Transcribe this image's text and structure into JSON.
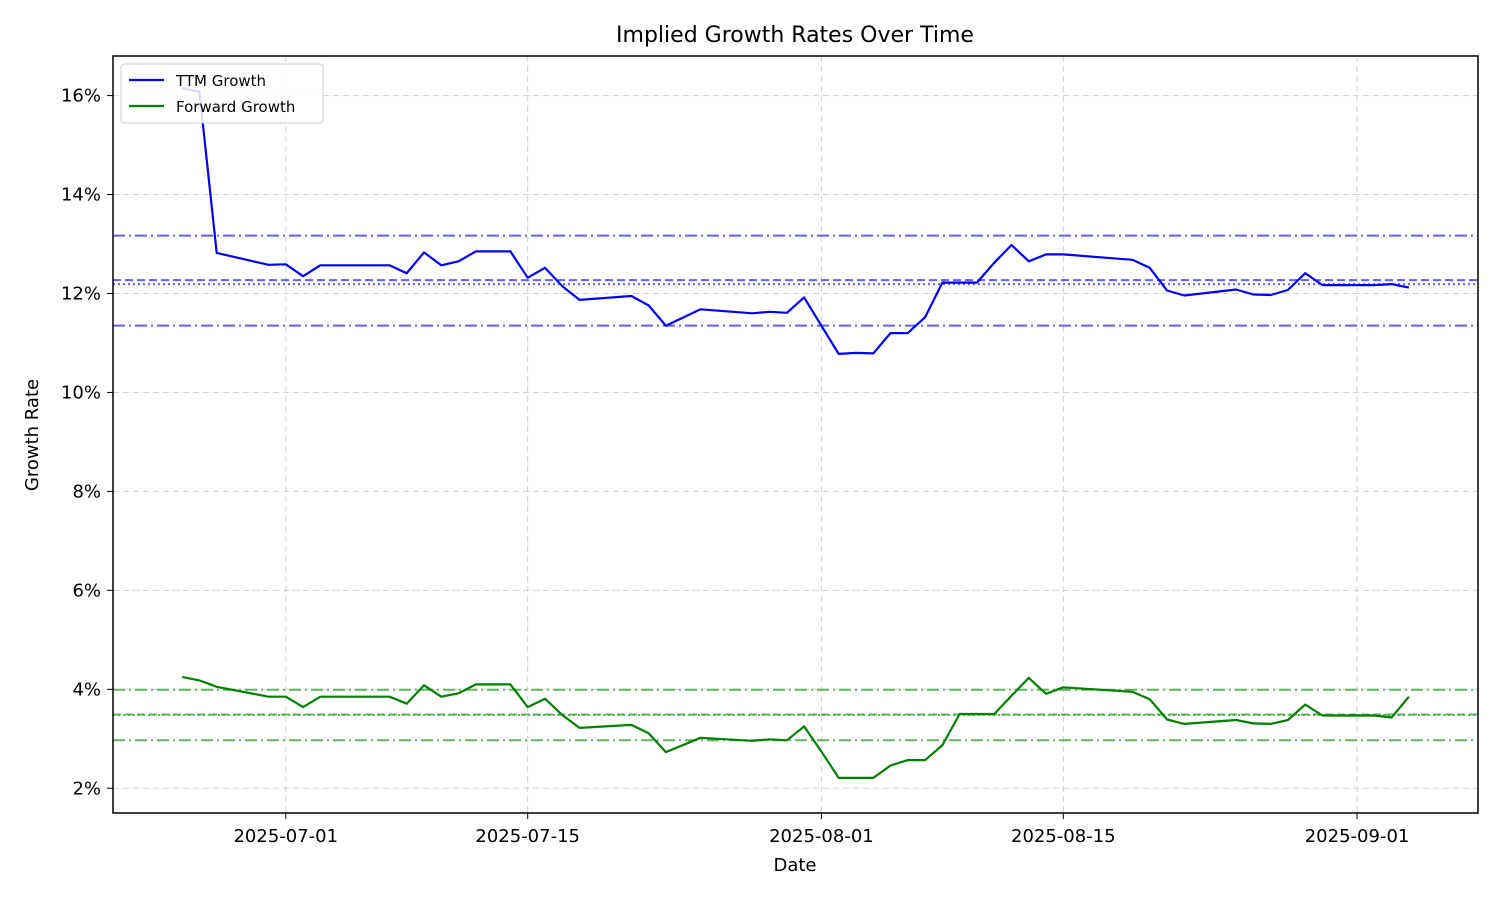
{
  "chart_data": {
    "type": "line",
    "title": "Implied Growth Rates Over Time",
    "xlabel": "Date",
    "ylabel": "Growth Rate",
    "xlim": [
      "2025-06-21",
      "2025-09-08"
    ],
    "ylim": [
      0.015,
      0.168
    ],
    "x_ticks": [
      "2025-07-01",
      "2025-07-15",
      "2025-08-01",
      "2025-08-15",
      "2025-09-01"
    ],
    "y_ticks": [
      0.02,
      0.04,
      0.06,
      0.08,
      0.1,
      0.12,
      0.14,
      0.16
    ],
    "y_tick_labels": [
      "2%",
      "4%",
      "6%",
      "8%",
      "10%",
      "12%",
      "14%",
      "16%"
    ],
    "grid": true,
    "legend_position": "top-left",
    "x": [
      "2025-06-25",
      "2025-06-26",
      "2025-06-27",
      "2025-06-30",
      "2025-07-01",
      "2025-07-02",
      "2025-07-03",
      "2025-07-07",
      "2025-07-08",
      "2025-07-09",
      "2025-07-10",
      "2025-07-11",
      "2025-07-12",
      "2025-07-14",
      "2025-07-15",
      "2025-07-16",
      "2025-07-17",
      "2025-07-18",
      "2025-07-21",
      "2025-07-22",
      "2025-07-23",
      "2025-07-25",
      "2025-07-28",
      "2025-07-29",
      "2025-07-30",
      "2025-07-31",
      "2025-08-01",
      "2025-08-02",
      "2025-08-03",
      "2025-08-04",
      "2025-08-05",
      "2025-08-06",
      "2025-08-07",
      "2025-08-08",
      "2025-08-09",
      "2025-08-10",
      "2025-08-11",
      "2025-08-12",
      "2025-08-13",
      "2025-08-14",
      "2025-08-15",
      "2025-08-19",
      "2025-08-20",
      "2025-08-21",
      "2025-08-22",
      "2025-08-25",
      "2025-08-26",
      "2025-08-27",
      "2025-08-28",
      "2025-08-29",
      "2025-08-30",
      "2025-09-02",
      "2025-09-03",
      "2025-09-04"
    ],
    "series": [
      {
        "name": "TTM Growth",
        "color": "#0000ff",
        "values": [
          0.1615,
          0.1608,
          0.1282,
          0.1258,
          0.1259,
          0.1235,
          0.1257,
          0.1257,
          0.1241,
          0.1283,
          0.1257,
          0.1265,
          0.1285,
          0.1285,
          0.1232,
          0.1252,
          0.1215,
          0.1187,
          0.1195,
          0.1176,
          0.1135,
          0.1168,
          0.116,
          0.1163,
          0.1161,
          0.1192,
          0.1135,
          0.1078,
          0.108,
          0.1079,
          0.112,
          0.112,
          0.1152,
          0.1222,
          0.1222,
          0.1222,
          0.1262,
          0.1298,
          0.1265,
          0.1279,
          0.1279,
          0.1268,
          0.1252,
          0.1206,
          0.1196,
          0.1208,
          0.1198,
          0.1197,
          0.1207,
          0.1241,
          0.1217,
          0.1217,
          0.1219,
          0.1212
        ]
      },
      {
        "name": "Forward Growth",
        "color": "#008000",
        "values": [
          0.0425,
          0.0418,
          0.0405,
          0.0385,
          0.0385,
          0.0364,
          0.0385,
          0.0385,
          0.0371,
          0.0408,
          0.0385,
          0.0392,
          0.041,
          0.041,
          0.0364,
          0.0381,
          0.0348,
          0.0322,
          0.0328,
          0.0311,
          0.0273,
          0.0302,
          0.0296,
          0.0299,
          0.0297,
          0.0325,
          0.0274,
          0.0221,
          0.0221,
          0.0221,
          0.0246,
          0.0257,
          0.0257,
          0.0287,
          0.035,
          0.035,
          0.035,
          0.0387,
          0.0423,
          0.0391,
          0.0404,
          0.0395,
          0.038,
          0.0339,
          0.033,
          0.0338,
          0.0331,
          0.033,
          0.0338,
          0.0369,
          0.0347,
          0.0347,
          0.0343,
          0.0385
        ]
      }
    ],
    "reference_lines": [
      {
        "series": "TTM Growth",
        "value": 0.1317,
        "style": "dashdot",
        "color": "#4444ee"
      },
      {
        "series": "TTM Growth",
        "value": 0.1227,
        "style": "dashed",
        "color": "#4444ee"
      },
      {
        "series": "TTM Growth",
        "value": 0.1219,
        "style": "dotted",
        "color": "#4444ee"
      },
      {
        "series": "TTM Growth",
        "value": 0.1135,
        "style": "dashdot",
        "color": "#4444ee"
      },
      {
        "series": "Forward Growth",
        "value": 0.0399,
        "style": "dashdot",
        "color": "#44aa44"
      },
      {
        "series": "Forward Growth",
        "value": 0.0349,
        "style": "dashed",
        "color": "#44aa44"
      },
      {
        "series": "Forward Growth",
        "value": 0.0348,
        "style": "dotted",
        "color": "#44aa44"
      },
      {
        "series": "Forward Growth",
        "value": 0.0297,
        "style": "dashdot",
        "color": "#44aa44"
      }
    ]
  }
}
